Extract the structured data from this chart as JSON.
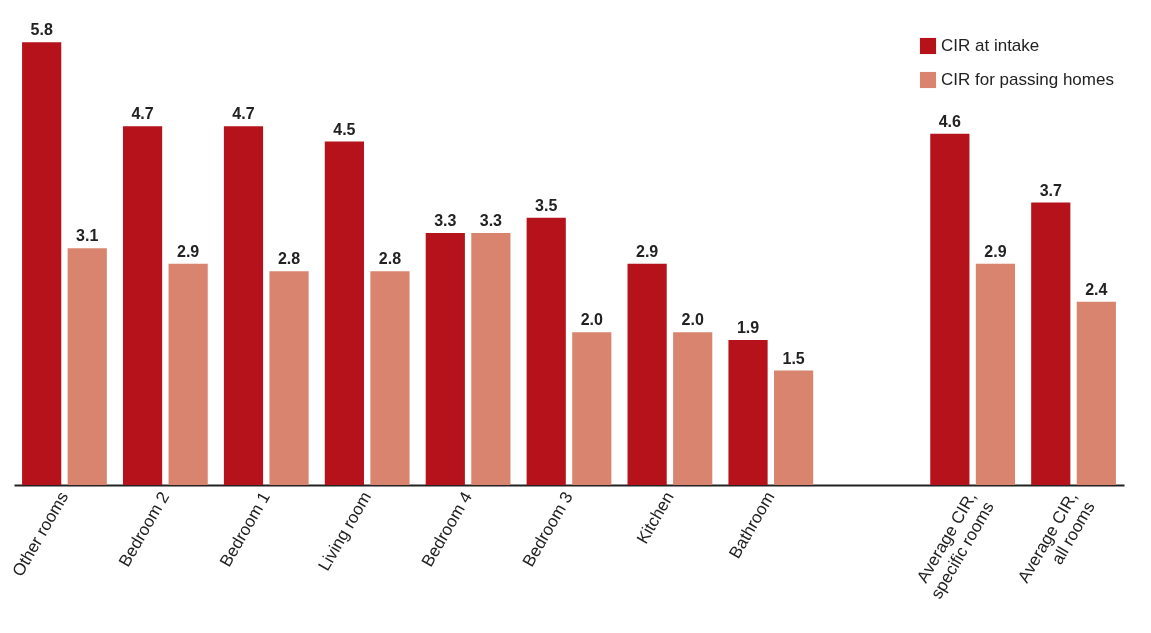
{
  "chart_data": {
    "type": "bar",
    "legend": "top right",
    "categories": [
      "Other rooms",
      "Bedroom 2",
      "Bedroom 1",
      "Living room",
      "Bedroom 4",
      "Bedroom 3",
      "Kitchen",
      "Bathroom",
      null,
      "Average CIR,\nspecific rooms",
      "Average CIR,\nall rooms"
    ],
    "series": [
      {
        "name": "CIR at intake",
        "color": "#b5121b",
        "values": [
          5.8,
          4.7,
          4.7,
          4.5,
          3.3,
          3.5,
          2.9,
          1.9,
          null,
          4.6,
          3.7
        ],
        "value_labels": [
          "5.8",
          "4.7",
          "4.7",
          "4.5",
          "3.3",
          "3.5",
          "2.9",
          "1.9",
          null,
          "4.6",
          "3.7"
        ]
      },
      {
        "name": "CIR for passing homes",
        "color": "#d9846e",
        "values": [
          3.1,
          2.9,
          2.8,
          2.8,
          3.3,
          2.0,
          2.0,
          1.5,
          null,
          2.9,
          2.4
        ],
        "value_labels": [
          "3.1",
          "2.9",
          "2.8",
          "2.8",
          "3.3",
          "2.0",
          "2.0",
          "1.5",
          null,
          "2.9",
          "2.4"
        ]
      }
    ]
  }
}
